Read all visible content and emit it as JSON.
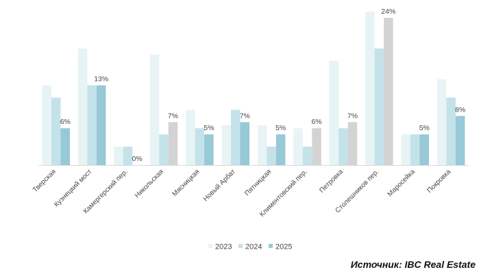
{
  "chart_data": {
    "type": "bar",
    "categories": [
      "Тверская",
      "Кузнецкий мост",
      "Камергерский пер.",
      "Никольская",
      "Мясницкая",
      "Новый Арбат",
      "Пятницкая",
      "Климентовский пер.",
      "Петровка",
      "Столешников пер.",
      "Маросейка",
      "Покровка"
    ],
    "series": [
      {
        "name": "2023",
        "values": [
          13,
          19,
          3,
          18,
          9,
          6.5,
          6.5,
          6,
          17,
          25,
          5,
          14
        ]
      },
      {
        "name": "2024",
        "values": [
          11,
          13,
          3,
          5,
          6,
          9,
          3,
          3,
          6,
          19,
          5,
          11
        ]
      },
      {
        "name": "2025",
        "values": [
          6,
          13,
          0,
          7,
          5,
          7,
          5,
          6,
          7,
          24,
          5,
          8
        ]
      }
    ],
    "data_labels": [
      "6%",
      "13%",
      "0%",
      "7%",
      "5%",
      "7%",
      "5%",
      "6%",
      "7%",
      "24%",
      "5%",
      "8%"
    ],
    "ylim": [
      0,
      25
    ],
    "grid": false,
    "legend_position": "bottom-center",
    "colors": {
      "2023": "#e8f3f6",
      "2024": "#c4e2ea",
      "2025": "#97c9d7",
      "2025_gray": "#d3d3d3",
      "baseline": "#d9d9d9",
      "label": "#444444"
    },
    "gray_2025_indices": [
      3,
      7,
      8,
      9
    ]
  },
  "source": {
    "text": "Источник: IBC Real Estate"
  }
}
